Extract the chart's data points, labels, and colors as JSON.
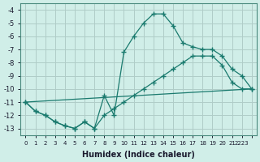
{
  "xlabel": "Humidex (Indice chaleur)",
  "bg_color": "#d0eee8",
  "grid_color": "#b0ccc8",
  "line_color": "#1a7a6e",
  "line1_x": [
    0,
    1,
    2,
    3,
    4,
    5,
    6,
    7,
    8,
    9,
    10,
    11,
    12,
    13,
    14,
    15,
    16,
    17,
    18,
    19,
    20,
    21,
    22,
    23
  ],
  "line1_y": [
    -11,
    -11.7,
    -12,
    -12.5,
    -12.8,
    -13,
    -12.5,
    -13,
    -10.5,
    -12,
    -7.2,
    -6,
    -5,
    -4.3,
    -4.3,
    -5.2,
    -6.5,
    -6.8,
    -7,
    -7,
    -7.5,
    -8.5,
    -9,
    -10
  ],
  "line2_x": [
    0,
    1,
    2,
    3,
    4,
    5,
    6,
    7,
    8,
    9,
    10,
    11,
    12,
    13,
    14,
    15,
    16,
    17,
    18,
    19,
    20,
    21,
    22,
    23
  ],
  "line2_y": [
    -11,
    -11.7,
    -12,
    -12.5,
    -12.8,
    -13,
    -12.5,
    -13,
    -12,
    -11.5,
    -11,
    -10.5,
    -10,
    -9.5,
    -9,
    -8.5,
    -8,
    -7.5,
    -7.5,
    -7.5,
    -8.2,
    -9.5,
    -10,
    -10
  ],
  "line3_x": [
    0,
    23
  ],
  "line3_y": [
    -11,
    -10
  ],
  "xlim": [
    -0.5,
    23.5
  ],
  "ylim": [
    -13.5,
    -3.5
  ],
  "yticks": [
    -13,
    -12,
    -11,
    -10,
    -9,
    -8,
    -7,
    -6,
    -5,
    -4
  ],
  "xtick_positions": [
    0,
    1,
    2,
    3,
    4,
    5,
    6,
    7,
    8,
    9,
    10,
    11,
    12,
    13,
    14,
    15,
    16,
    17,
    18,
    19,
    20,
    21,
    22,
    23
  ],
  "xtick_labels": [
    "0",
    "1",
    "2",
    "3",
    "4",
    "5",
    "6",
    "7",
    "8",
    "9",
    "10",
    "11",
    "12",
    "13",
    "14",
    "15",
    "16",
    "17",
    "18",
    "19",
    "20",
    "21",
    "2223",
    ""
  ]
}
